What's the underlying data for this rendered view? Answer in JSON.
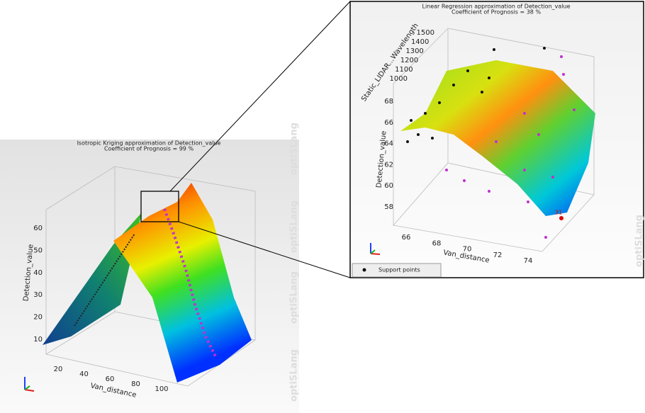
{
  "left_panel": {
    "title": "Isotropic Kriging approximation of Detection_value",
    "subtitle": "Coefficient of Prognosis = 99 %",
    "z_axis_label": "Detection_value",
    "z_ticks": [
      "60",
      "50",
      "40",
      "30",
      "20",
      "10"
    ],
    "x_axis_label": "Van_distance",
    "x_ticks": [
      "20",
      "40",
      "60",
      "80",
      "100"
    ],
    "watermark": "optiSLang"
  },
  "right_panel": {
    "title": "Linear Regression approximation of Detection_value",
    "subtitle": "Coefficient of Prognosis = 38 %",
    "y_axis_label": "Static_LIDAR...Wavelength",
    "y_ticks": [
      "1500",
      "1400",
      "1300",
      "1200",
      "1100",
      "1000"
    ],
    "z_axis_label": "Detection_value",
    "z_ticks": [
      "68",
      "66",
      "64",
      "62",
      "60",
      "58"
    ],
    "x_axis_label": "Van_distance",
    "x_ticks": [
      "66",
      "68",
      "70",
      "72",
      "74"
    ],
    "point_label": "31",
    "legend": "Support points",
    "watermark": "optiSLang"
  }
}
